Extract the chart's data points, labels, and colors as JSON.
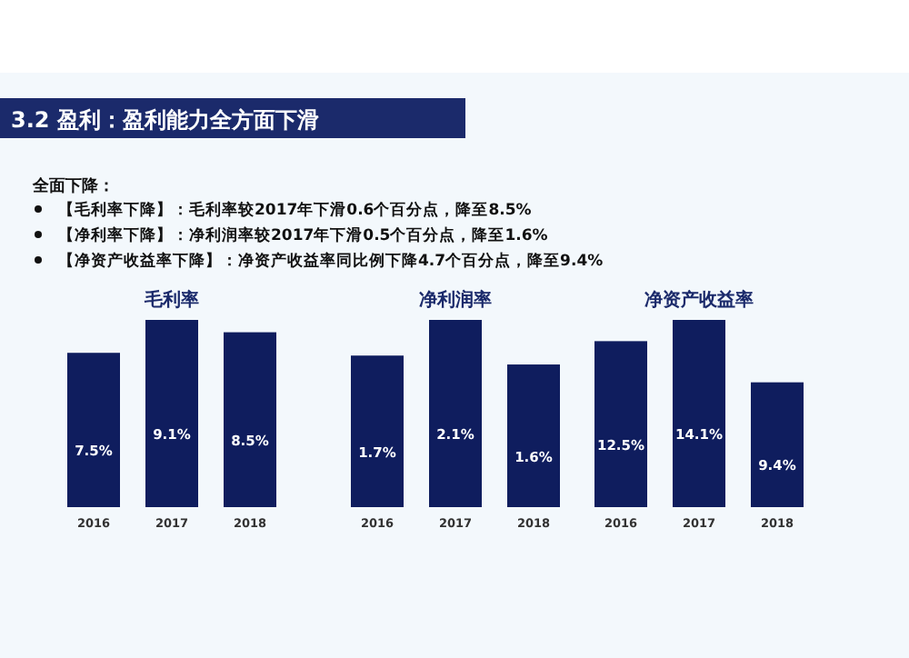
{
  "chart_data": [
    {
      "type": "other",
      "title": "3.2 盈利：盈利能力全方面下滑",
      "subtitle": "全面下降：",
      "annotations": [
        "【毛利率下降】：毛利率较2017年下滑0.6个百分点，降至8.5%",
        "【净利率下降】：净利润率较2017年下滑0.5个百分点，降至1.6%",
        "【净资产收益率下降】：净资产收益率同比例下降4.7个百分点，降至9.4%"
      ]
    },
    {
      "type": "bar",
      "title": "毛利率",
      "categories": [
        "2016",
        "2017",
        "2018"
      ],
      "values": [
        7.5,
        9.1,
        8.5
      ],
      "value_labels": [
        "7.5%",
        "9.1%",
        "8.5%"
      ],
      "color": "#0f1d5e"
    },
    {
      "type": "bar",
      "title": "净利润率",
      "categories": [
        "2016",
        "2017",
        "2018"
      ],
      "values": [
        1.7,
        2.1,
        1.6
      ],
      "value_labels": [
        "1.7%",
        "2.1%",
        "1.6%"
      ],
      "color": "#0f1d5e"
    },
    {
      "type": "bar",
      "title": "净资产收益率",
      "categories": [
        "2016",
        "2017",
        "2018"
      ],
      "values": [
        12.5,
        14.1,
        9.4
      ],
      "value_labels": [
        "12.5%",
        "14.1%",
        "9.4%"
      ],
      "color": "#0f1d5e"
    }
  ]
}
